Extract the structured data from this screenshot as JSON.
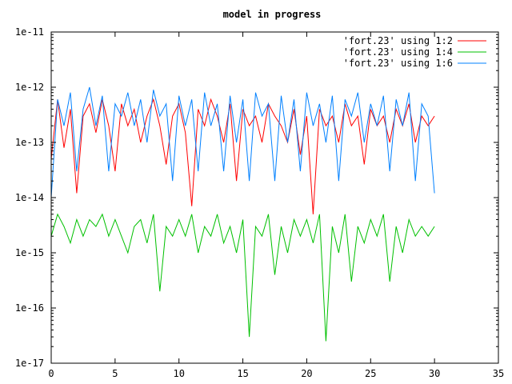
{
  "chart_data": {
    "type": "line",
    "title": "model in progress",
    "xlabel": "",
    "ylabel": "",
    "xlim": [
      0,
      35
    ],
    "ylim": [
      1e-17,
      1e-11
    ],
    "yscale": "log",
    "grid": false,
    "legend_position": "top-right",
    "x_ticks": [
      0,
      5,
      10,
      15,
      20,
      25,
      30,
      35
    ],
    "x_tick_labels": [
      "0",
      "5",
      "10",
      "15",
      "20",
      "25",
      "30",
      "35"
    ],
    "y_ticks": [
      1e-17,
      1e-16,
      1e-15,
      1e-14,
      1e-13,
      1e-12,
      1e-11
    ],
    "y_tick_labels": [
      "1e-17",
      "1e-16",
      "1e-15",
      "1e-14",
      "1e-13",
      "1e-12",
      "1e-11"
    ],
    "x": [
      0.0,
      0.5,
      1.0,
      1.5,
      2.0,
      2.5,
      3.0,
      3.5,
      4.0,
      4.5,
      5.0,
      5.5,
      6.0,
      6.5,
      7.0,
      7.5,
      8.0,
      8.5,
      9.0,
      9.5,
      10.0,
      10.5,
      11.0,
      11.5,
      12.0,
      12.5,
      13.0,
      13.5,
      14.0,
      14.5,
      15.0,
      15.5,
      16.0,
      16.5,
      17.0,
      17.5,
      18.0,
      18.5,
      19.0,
      19.5,
      20.0,
      20.5,
      21.0,
      21.5,
      22.0,
      22.5,
      23.0,
      23.5,
      24.0,
      24.5,
      25.0,
      25.5,
      26.0,
      26.5,
      27.0,
      27.5,
      28.0,
      28.5,
      29.0,
      29.5,
      30.0
    ],
    "series": [
      {
        "name": "'fort.23' using 1:2",
        "color": "#ff0000",
        "values": [
          5e-14,
          6e-13,
          8e-14,
          4e-13,
          1.2e-14,
          3e-13,
          5e-13,
          1.5e-13,
          6e-13,
          2e-13,
          3e-14,
          5e-13,
          2e-13,
          4e-13,
          1e-13,
          3e-13,
          6e-13,
          2e-13,
          4e-14,
          3e-13,
          5e-13,
          1.5e-13,
          7e-15,
          4e-13,
          2e-13,
          6e-13,
          3e-13,
          1e-13,
          5e-13,
          2e-14,
          4e-13,
          2e-13,
          3e-13,
          1e-13,
          5e-13,
          3e-13,
          2e-13,
          1e-13,
          4e-13,
          6e-14,
          3e-13,
          5e-15,
          4e-13,
          2e-13,
          3e-13,
          1e-13,
          5e-13,
          2e-13,
          3e-13,
          4e-14,
          4e-13,
          2e-13,
          3e-13,
          1e-13,
          4e-13,
          2e-13,
          5e-13,
          1e-13,
          3e-13,
          2e-13,
          3e-13
        ]
      },
      {
        "name": "'fort.23' using 1:4",
        "color": "#00c000",
        "values": [
          2e-15,
          5e-15,
          3e-15,
          1.5e-15,
          4e-15,
          2e-15,
          4e-15,
          3e-15,
          5e-15,
          2e-15,
          4e-15,
          2e-15,
          1e-15,
          3e-15,
          4e-15,
          1.5e-15,
          5e-15,
          2e-16,
          3e-15,
          2e-15,
          4e-15,
          2e-15,
          5e-15,
          1e-15,
          3e-15,
          2e-15,
          5e-15,
          1.5e-15,
          3e-15,
          1e-15,
          4e-15,
          3e-17,
          3e-15,
          2e-15,
          5e-15,
          4e-16,
          3e-15,
          1e-15,
          4e-15,
          2e-15,
          4e-15,
          1.5e-15,
          5e-15,
          2.5e-17,
          3e-15,
          1e-15,
          5e-15,
          3e-16,
          3e-15,
          1.5e-15,
          4e-15,
          2e-15,
          5e-15,
          3e-16,
          3e-15,
          1e-15,
          4e-15,
          2e-15,
          3e-15,
          2e-15,
          3e-15
        ]
      },
      {
        "name": "'fort.23' using 1:6",
        "color": "#0080ff",
        "values": [
          1e-14,
          6e-13,
          2e-13,
          8e-13,
          3e-14,
          4e-13,
          1e-12,
          2e-13,
          7e-13,
          3e-14,
          5e-13,
          3e-13,
          8e-13,
          2e-13,
          6e-13,
          1e-13,
          9e-13,
          3e-13,
          5e-13,
          2e-14,
          7e-13,
          2e-13,
          6e-13,
          3e-14,
          8e-13,
          2e-13,
          5e-13,
          3e-14,
          7e-13,
          1e-13,
          6e-13,
          2e-14,
          8e-13,
          3e-13,
          5e-13,
          2e-14,
          7e-13,
          1e-13,
          6e-13,
          3e-14,
          8e-13,
          2e-13,
          5e-13,
          1e-13,
          7e-13,
          2e-14,
          6e-13,
          3e-13,
          8e-13,
          1e-13,
          5e-13,
          2e-13,
          7e-13,
          3e-14,
          6e-13,
          2e-13,
          8e-13,
          2e-14,
          5e-13,
          3e-13,
          1.2e-14
        ]
      }
    ]
  }
}
